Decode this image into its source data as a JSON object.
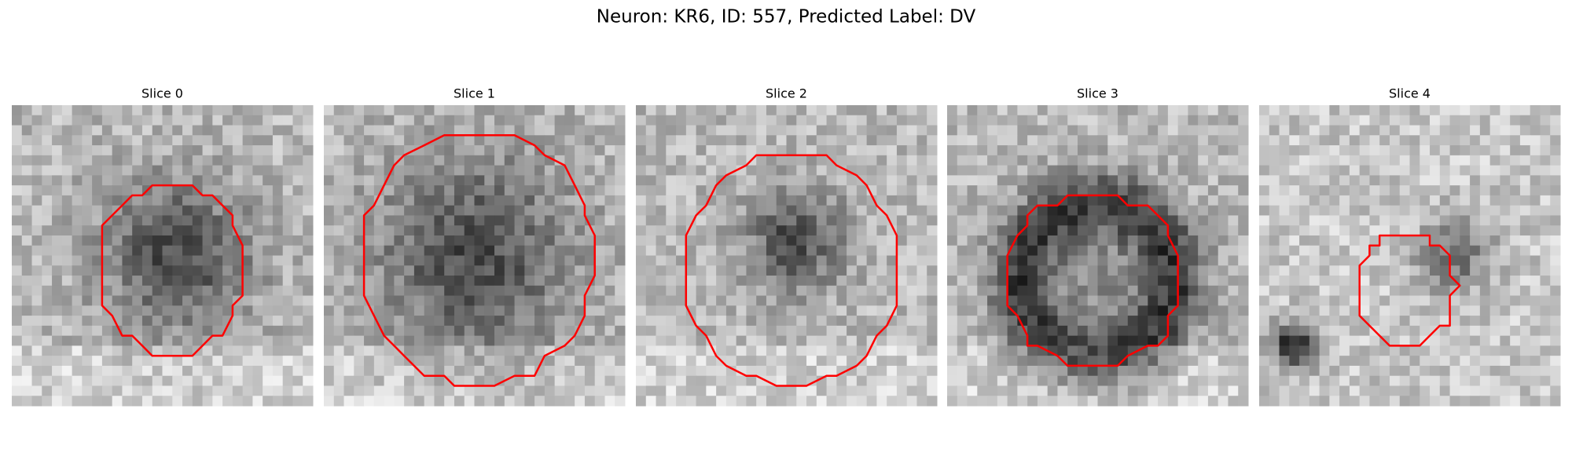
{
  "title": "Neuron: KR6, ID: 557, Predicted Label: DV",
  "panels": [
    {
      "title": "Slice 0"
    },
    {
      "title": "Slice 1"
    },
    {
      "title": "Slice 2"
    },
    {
      "title": "Slice 3"
    },
    {
      "title": "Slice 4"
    }
  ]
}
